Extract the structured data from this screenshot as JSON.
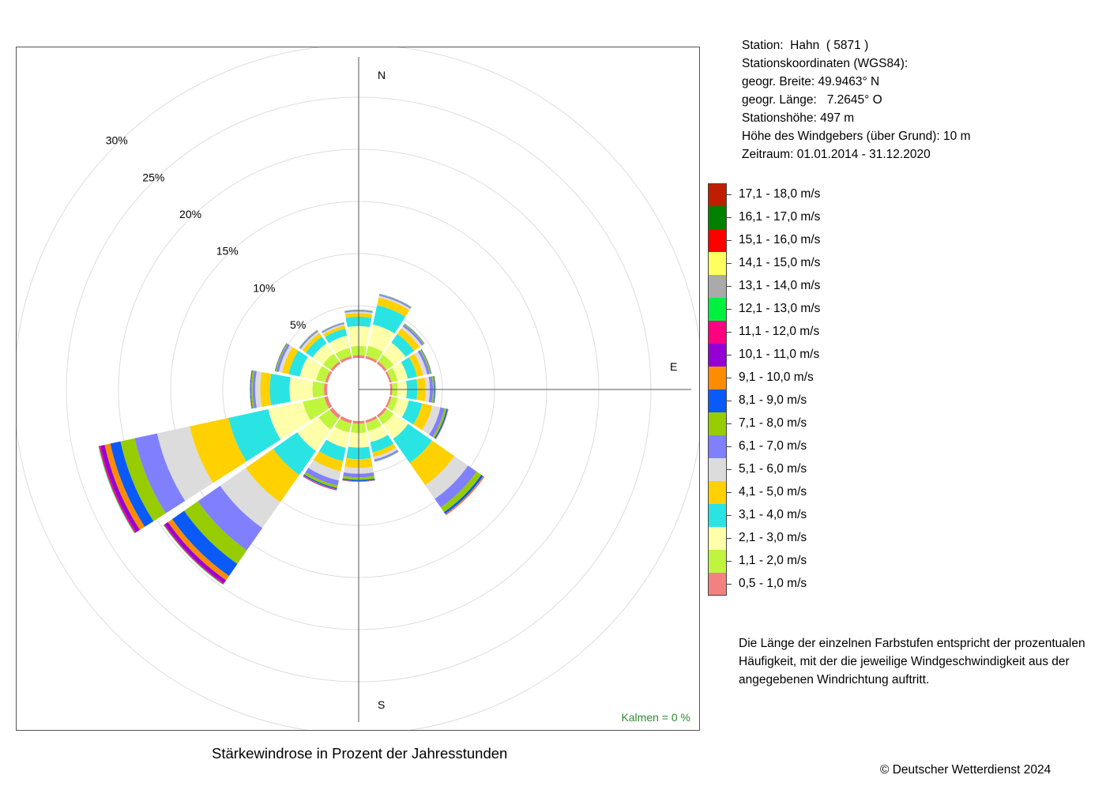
{
  "chart_data": {
    "type": "wind-rose",
    "title": "Stärkewindrose in Prozent der Jahresstunden",
    "directions": [
      "N",
      "NNO",
      "NO",
      "ONO",
      "O",
      "OSO",
      "SO",
      "SSO",
      "S",
      "SSW",
      "SW",
      "WSW",
      "W",
      "WNW",
      "NW",
      "NNW"
    ],
    "direction_labels": {
      "N": "N",
      "E": "E",
      "S": "S"
    },
    "radial_ticks": [
      {
        "value": 5,
        "label": "5%"
      },
      {
        "value": 10,
        "label": "10%"
      },
      {
        "value": 15,
        "label": "15%"
      },
      {
        "value": 20,
        "label": "20%"
      },
      {
        "value": 25,
        "label": "25%"
      },
      {
        "value": 30,
        "label": "30%"
      }
    ],
    "radial_unit": "%",
    "calm_label": "Kalmen  =  0 %",
    "legend_title": "",
    "classes": [
      {
        "label": "0,5 - 1,0 m/s",
        "color": "#F4807F"
      },
      {
        "label": "1,1 - 2,0 m/s",
        "color": "#BFF53D"
      },
      {
        "label": "2,1 - 3,0 m/s",
        "color": "#FFFFAA"
      },
      {
        "label": "3,1 - 4,0 m/s",
        "color": "#2AE4E4"
      },
      {
        "label": "4,1 - 5,0 m/s",
        "color": "#FFD100"
      },
      {
        "label": "5,1 - 6,0 m/s",
        "color": "#DCDCDC"
      },
      {
        "label": "6,1 - 7,0 m/s",
        "color": "#8080FF"
      },
      {
        "label": "7,1 - 8,0 m/s",
        "color": "#96CC00"
      },
      {
        "label": "8,1 - 9,0 m/s",
        "color": "#0A5AFA"
      },
      {
        "label": "9,1 - 10,0 m/s",
        "color": "#FF8C00"
      },
      {
        "label": "10,1 - 11,0 m/s",
        "color": "#9400D3"
      },
      {
        "label": "11,1 - 12,0 m/s",
        "color": "#FF0080"
      },
      {
        "label": "12,1 - 13,0 m/s",
        "color": "#00F040"
      },
      {
        "label": "13,1 - 14,0 m/s",
        "color": "#AAAAAA"
      },
      {
        "label": "14,1 - 15,0 m/s",
        "color": "#FFFF60"
      },
      {
        "label": "15,1 - 16,0 m/s",
        "color": "#FF0000"
      },
      {
        "label": "16,1 - 17,0 m/s",
        "color": "#008000"
      },
      {
        "label": "17,1 - 18,0 m/s",
        "color": "#C01E00"
      }
    ],
    "series": [
      {
        "direction": "N",
        "values": [
          0.25,
          0.9,
          1.9,
          0.9,
          0.35,
          0.15,
          0.1,
          0.05,
          0.02,
          0,
          0,
          0,
          0,
          0,
          0,
          0,
          0,
          0
        ]
      },
      {
        "direction": "NNO",
        "values": [
          0.25,
          1.0,
          2.1,
          1.9,
          0.75,
          0.17,
          0.12,
          0.05,
          0.02,
          0,
          0,
          0,
          0,
          0,
          0,
          0,
          0,
          0
        ]
      },
      {
        "direction": "NO",
        "values": [
          0.25,
          0.8,
          1.4,
          1.0,
          0.65,
          0.25,
          0.2,
          0.1,
          0.03,
          0,
          0,
          0,
          0,
          0,
          0,
          0,
          0,
          0
        ]
      },
      {
        "direction": "ONO",
        "values": [
          0.2,
          0.6,
          1.0,
          0.9,
          0.6,
          0.4,
          0.25,
          0.12,
          0.05,
          0.02,
          0,
          0,
          0,
          0,
          0,
          0,
          0,
          0
        ]
      },
      {
        "direction": "O",
        "values": [
          0.2,
          0.5,
          0.9,
          1.0,
          0.8,
          0.4,
          0.3,
          0.15,
          0.08,
          0.02,
          0,
          0,
          0,
          0,
          0,
          0,
          0,
          0
        ]
      },
      {
        "direction": "OSO",
        "values": [
          0.2,
          0.6,
          1.1,
          1.3,
          1.0,
          0.8,
          0.4,
          0.2,
          0.12,
          0.04,
          0.02,
          0,
          0,
          0,
          0,
          0,
          0,
          0
        ]
      },
      {
        "direction": "SO",
        "values": [
          0.25,
          0.8,
          1.7,
          2.8,
          2.6,
          1.6,
          1.0,
          0.55,
          0.22,
          0.1,
          0.03,
          0,
          0,
          0,
          0,
          0,
          0,
          0
        ]
      },
      {
        "direction": "SSO",
        "values": [
          0.25,
          0.8,
          1.1,
          1.0,
          0.45,
          0.25,
          0.15,
          0.05,
          0.02,
          0,
          0,
          0,
          0,
          0,
          0,
          0,
          0,
          0
        ]
      },
      {
        "direction": "S",
        "values": [
          0.25,
          0.9,
          1.4,
          1.1,
          0.85,
          0.55,
          0.35,
          0.25,
          0.12,
          0.05,
          0.02,
          0,
          0,
          0,
          0,
          0,
          0,
          0
        ]
      },
      {
        "direction": "SSW",
        "values": [
          0.3,
          0.9,
          1.5,
          1.3,
          1.0,
          0.9,
          0.5,
          0.25,
          0.12,
          0.05,
          0.04,
          0.02,
          0,
          0,
          0,
          0,
          0,
          0
        ]
      },
      {
        "direction": "SW",
        "values": [
          0.35,
          1.3,
          2.5,
          2.8,
          3.2,
          3.0,
          2.6,
          1.6,
          1.4,
          0.5,
          0.35,
          0.12,
          0.05,
          0,
          0,
          0,
          0,
          0
        ]
      },
      {
        "direction": "WSW",
        "values": [
          0.35,
          2.1,
          3.4,
          3.9,
          3.8,
          3.2,
          2.2,
          1.4,
          1.0,
          0.55,
          0.4,
          0.15,
          0.06,
          0.02,
          0,
          0,
          0,
          0
        ]
      },
      {
        "direction": "W",
        "values": [
          0.3,
          1.1,
          2.2,
          1.9,
          0.9,
          0.5,
          0.25,
          0.15,
          0.08,
          0.03,
          0,
          0,
          0,
          0,
          0,
          0,
          0,
          0
        ]
      },
      {
        "direction": "WNW",
        "values": [
          0.25,
          0.9,
          1.6,
          1.1,
          0.65,
          0.32,
          0.22,
          0.1,
          0.05,
          0.02,
          0,
          0,
          0,
          0,
          0,
          0,
          0,
          0
        ]
      },
      {
        "direction": "NW",
        "values": [
          0.25,
          0.9,
          1.2,
          0.8,
          0.4,
          0.2,
          0.12,
          0.05,
          0.02,
          0,
          0,
          0,
          0,
          0,
          0,
          0,
          0,
          0
        ]
      },
      {
        "direction": "NNW",
        "values": [
          0.25,
          0.8,
          1.2,
          0.7,
          0.3,
          0.15,
          0.1,
          0.04,
          0.02,
          0,
          0,
          0,
          0,
          0,
          0,
          0,
          0,
          0
        ]
      }
    ]
  },
  "station": {
    "line1": "Station:  Hahn  ( 5871 )",
    "line2": "Stationskoordinaten (WGS84):",
    "line3": "geogr. Breite: 49.9463° N",
    "line4": "geogr. Länge:   7.2645° O",
    "line5": "Stationshöhe: 497 m",
    "line6": "Höhe des Windgebers (über Grund): 10 m",
    "line7": "Zeitraum: 01.01.2014 - 31.12.2020"
  },
  "note": "Die Länge der einzelnen Farbstufen entspricht der prozentualen Häufigkeit, mit der die jeweilige Windgeschwindigkeit aus der angegebenen Windrichtung auftritt.",
  "copyright": "© Deutscher Wetterdienst  2024",
  "colors": {
    "grid": "#DDDDDD",
    "axis": "#555555",
    "calm": "#2E8B2E",
    "frame": "#555555"
  }
}
